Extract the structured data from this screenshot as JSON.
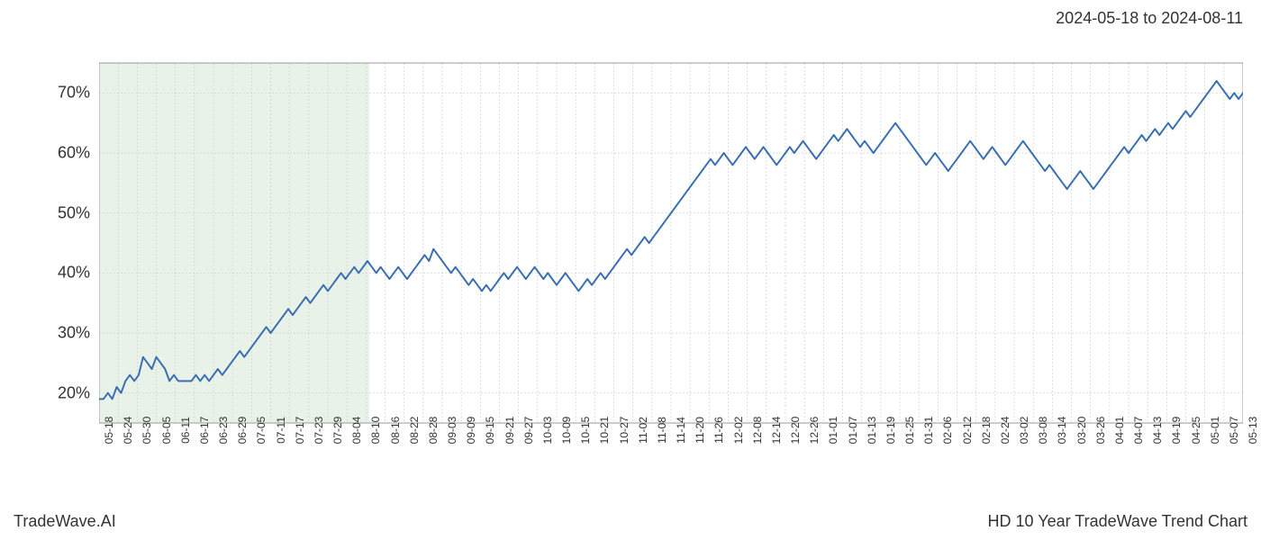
{
  "header": {
    "date_range": "2024-05-18 to 2024-08-11"
  },
  "footer": {
    "left": "TradeWave.AI",
    "right": "HD 10 Year TradeWave Trend Chart"
  },
  "chart": {
    "type": "line",
    "background_color": "#ffffff",
    "line_color": "#3a6fb0",
    "line_width": 2,
    "grid_color": "#d0d0d0",
    "grid_dash": "2,2",
    "border_color": "#999999",
    "highlight_band": {
      "fill": "#dae9d8",
      "opacity": 0.6,
      "x_start": "05-18",
      "x_end": "08-11"
    },
    "y_axis": {
      "min": 15,
      "max": 75,
      "ticks": [
        20,
        30,
        40,
        50,
        60,
        70
      ],
      "tick_suffix": "%",
      "fontsize": 18,
      "color": "#333333"
    },
    "x_axis": {
      "labels": [
        "05-18",
        "05-24",
        "05-30",
        "06-05",
        "06-11",
        "06-17",
        "06-23",
        "06-29",
        "07-05",
        "07-11",
        "07-17",
        "07-23",
        "07-29",
        "08-04",
        "08-10",
        "08-16",
        "08-22",
        "08-28",
        "09-03",
        "09-09",
        "09-15",
        "09-21",
        "09-27",
        "10-03",
        "10-09",
        "10-15",
        "10-21",
        "10-27",
        "11-02",
        "11-08",
        "11-14",
        "11-20",
        "11-26",
        "12-02",
        "12-08",
        "12-14",
        "12-20",
        "12-26",
        "01-01",
        "01-07",
        "01-13",
        "01-19",
        "01-25",
        "01-31",
        "02-06",
        "02-12",
        "02-18",
        "02-24",
        "03-02",
        "03-08",
        "03-14",
        "03-20",
        "03-26",
        "04-01",
        "04-07",
        "04-13",
        "04-19",
        "04-25",
        "05-01",
        "05-07",
        "05-13"
      ],
      "fontsize": 12,
      "rotation": -90,
      "color": "#333333"
    },
    "data_points": [
      19,
      19,
      20,
      19,
      21,
      20,
      22,
      23,
      22,
      23,
      26,
      25,
      24,
      26,
      25,
      24,
      22,
      23,
      22,
      22,
      22,
      22,
      23,
      22,
      23,
      22,
      23,
      24,
      23,
      24,
      25,
      26,
      27,
      26,
      27,
      28,
      29,
      30,
      31,
      30,
      31,
      32,
      33,
      34,
      33,
      34,
      35,
      36,
      35,
      36,
      37,
      38,
      37,
      38,
      39,
      40,
      39,
      40,
      41,
      40,
      41,
      42,
      41,
      40,
      41,
      40,
      39,
      40,
      41,
      40,
      39,
      40,
      41,
      42,
      43,
      42,
      44,
      43,
      42,
      41,
      40,
      41,
      40,
      39,
      38,
      39,
      38,
      37,
      38,
      37,
      38,
      39,
      40,
      39,
      40,
      41,
      40,
      39,
      40,
      41,
      40,
      39,
      40,
      39,
      38,
      39,
      40,
      39,
      38,
      37,
      38,
      39,
      38,
      39,
      40,
      39,
      40,
      41,
      42,
      43,
      44,
      43,
      44,
      45,
      46,
      45,
      46,
      47,
      48,
      49,
      50,
      51,
      52,
      53,
      54,
      55,
      56,
      57,
      58,
      59,
      58,
      59,
      60,
      59,
      58,
      59,
      60,
      61,
      60,
      59,
      60,
      61,
      60,
      59,
      58,
      59,
      60,
      61,
      60,
      61,
      62,
      61,
      60,
      59,
      60,
      61,
      62,
      63,
      62,
      63,
      64,
      63,
      62,
      61,
      62,
      61,
      60,
      61,
      62,
      63,
      64,
      65,
      64,
      63,
      62,
      61,
      60,
      59,
      58,
      59,
      60,
      59,
      58,
      57,
      58,
      59,
      60,
      61,
      62,
      61,
      60,
      59,
      60,
      61,
      60,
      59,
      58,
      59,
      60,
      61,
      62,
      61,
      60,
      59,
      58,
      57,
      58,
      57,
      56,
      55,
      54,
      55,
      56,
      57,
      56,
      55,
      54,
      55,
      56,
      57,
      58,
      59,
      60,
      61,
      60,
      61,
      62,
      63,
      62,
      63,
      64,
      63,
      64,
      65,
      64,
      65,
      66,
      67,
      66,
      67,
      68,
      69,
      70,
      71,
      72,
      71,
      70,
      69,
      70,
      69,
      70
    ],
    "data_x_count": 261
  }
}
